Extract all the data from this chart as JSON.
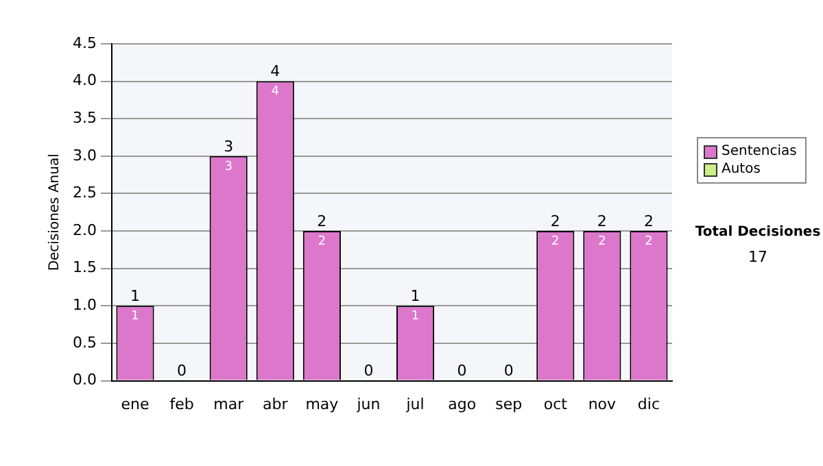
{
  "chart_data": {
    "type": "bar",
    "ylabel": "Decisiones Anual",
    "categories": [
      "ene",
      "feb",
      "mar",
      "abr",
      "may",
      "jun",
      "jul",
      "ago",
      "sep",
      "oct",
      "nov",
      "dic"
    ],
    "series": [
      {
        "name": "Sentencias",
        "color": "#dd77cc",
        "values": [
          1,
          0,
          3,
          4,
          2,
          0,
          1,
          0,
          0,
          2,
          2,
          2
        ],
        "value_labels": [
          "1",
          null,
          "3",
          "4",
          "2",
          null,
          "1",
          null,
          null,
          "2",
          "2",
          "2"
        ]
      },
      {
        "name": "Autos",
        "color": "#ccee88",
        "values": [
          0,
          0,
          0,
          0,
          0,
          0,
          0,
          0,
          0,
          0,
          0,
          0
        ]
      }
    ],
    "stacked": true,
    "totals": [
      "1",
      "0",
      "3",
      "4",
      "2",
      "0",
      "1",
      "0",
      "0",
      "2",
      "2",
      "2"
    ],
    "ylim": [
      0,
      4.5
    ],
    "yticks": [
      {
        "value": 0,
        "label": "0.0"
      },
      {
        "value": 0.5,
        "label": "0.5"
      },
      {
        "value": 1,
        "label": "1.0"
      },
      {
        "value": 1.5,
        "label": "1.5"
      },
      {
        "value": 2,
        "label": "2.0"
      },
      {
        "value": 2.5,
        "label": "2.5"
      },
      {
        "value": 3,
        "label": "3.0"
      },
      {
        "value": 3.5,
        "label": "3.5"
      },
      {
        "value": 4,
        "label": "4.0"
      },
      {
        "value": 4.5,
        "label": "4.5"
      }
    ],
    "grid": "y",
    "legend": "right",
    "annotations": [
      "Total Decisiones",
      "17"
    ]
  }
}
